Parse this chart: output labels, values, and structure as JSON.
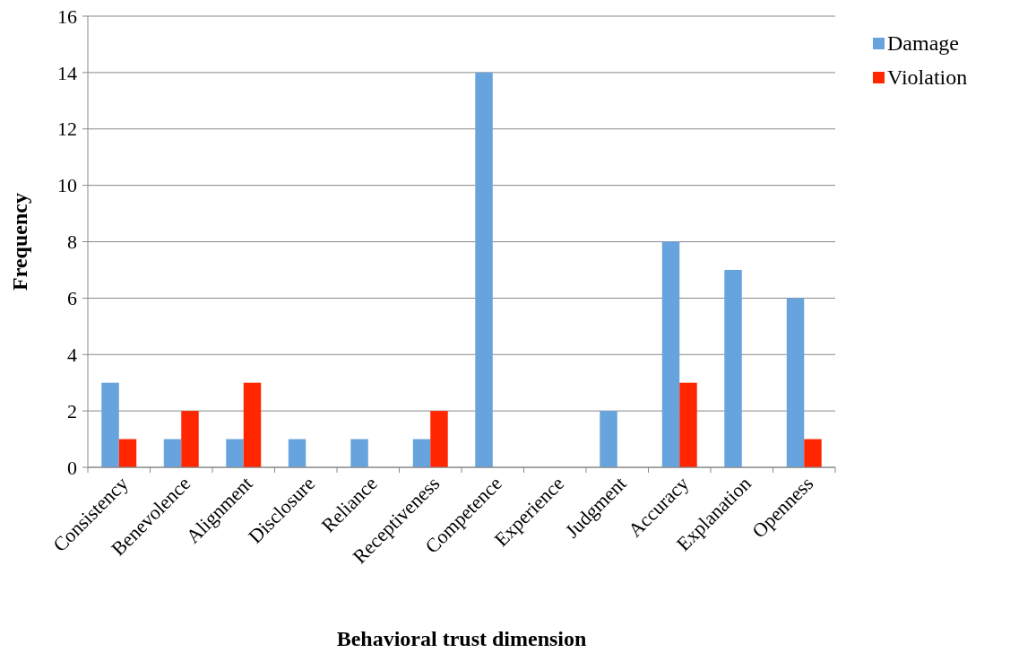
{
  "chart_data": {
    "type": "bar",
    "xlabel": "Behavioral trust dimension",
    "ylabel": "Frequency",
    "categories": [
      "Consistency",
      "Benevolence",
      "Alignment",
      "Disclosure",
      "Reliance",
      "Receptiveness",
      "Competence",
      "Experience",
      "Judgment",
      "Accuracy",
      "Explanation",
      "Openness"
    ],
    "series": [
      {
        "name": "Damage",
        "color": "#67a3dc",
        "values": [
          3,
          1,
          1,
          1,
          1,
          1,
          14,
          0,
          2,
          8,
          7,
          6
        ]
      },
      {
        "name": "Violation",
        "color": "#ff2600",
        "values": [
          1,
          2,
          3,
          0,
          0,
          2,
          0,
          0,
          0,
          3,
          0,
          1
        ]
      }
    ],
    "ylim": [
      0,
      16
    ],
    "yticks": [
      0,
      2,
      4,
      6,
      8,
      10,
      12,
      14,
      16
    ],
    "grid": "y",
    "legend": "top right"
  }
}
